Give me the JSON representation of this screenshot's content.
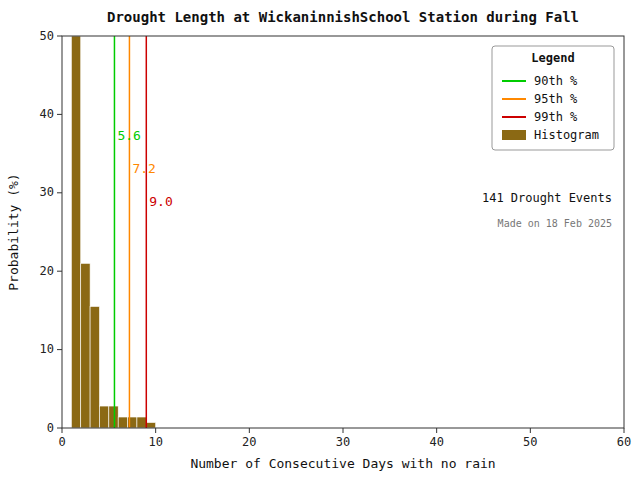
{
  "chart_data": {
    "type": "histogram",
    "title": "Drought Length at WickaninnishSchool Station during Fall",
    "x_label": "Number of Consecutive Days with no rain",
    "y_label": "Probability (%)",
    "bins": [
      1,
      2,
      3,
      4,
      5,
      6,
      7,
      8,
      9,
      10,
      11
    ],
    "series": [
      {
        "name": "90th %",
        "type": "vline",
        "color": "#00cc00",
        "values": [
          5.6
        ],
        "value_labels": [
          "5.6"
        ],
        "data_labels": true
      },
      {
        "name": "95th %",
        "type": "vline",
        "color": "#ff8800",
        "values": [
          7.2
        ],
        "value_labels": [
          "7.2"
        ],
        "data_labels": true
      },
      {
        "name": "99th %",
        "type": "vline",
        "color": "#cc0000",
        "values": [
          9.0
        ],
        "value_labels": [
          "9.0"
        ],
        "data_labels": true
      },
      {
        "name": "Histogram",
        "type": "histogram",
        "color": "#8B6914",
        "values": [
          50.0,
          21.0,
          15.5,
          2.8,
          2.8,
          1.4,
          1.4,
          1.4,
          0.7,
          0.0
        ]
      }
    ],
    "xlim": [
      0,
      60
    ],
    "ylim": [
      0,
      50
    ],
    "xticks": [
      0,
      10,
      20,
      30,
      40,
      50,
      60
    ],
    "yticks": [
      0,
      10,
      20,
      30,
      40,
      50
    ],
    "grid": false,
    "legend": "upper right",
    "legend_title": "Legend",
    "annotations": [
      "141 Drought Events",
      "Made on 18 Feb 2025"
    ]
  }
}
